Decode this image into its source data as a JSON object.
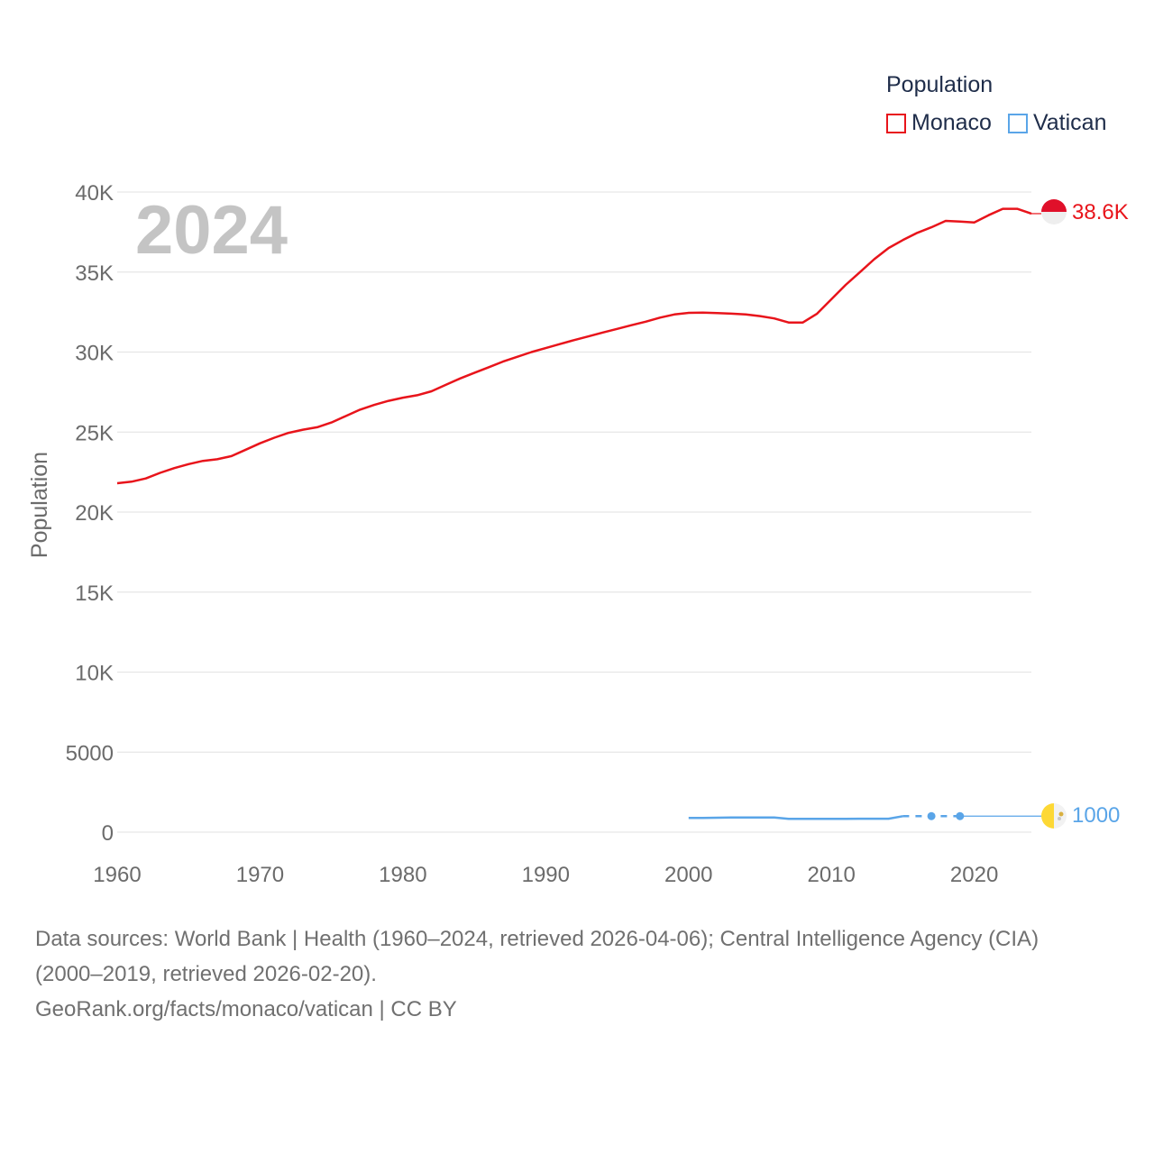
{
  "legend": {
    "title": "Population",
    "items": [
      "Monaco",
      "Vatican"
    ]
  },
  "footer": {
    "line1": "Data sources: World Bank | Health (1960–2024, retrieved 2026-04-06); Central Intelligence Agency (CIA)",
    "line2": "(2000–2019, retrieved 2026-02-20).",
    "line3": "GeoRank.org/facts/monaco/vatican | CC BY"
  },
  "colors": {
    "monaco": "#e8141b",
    "vatican": "#5aa5e8",
    "grid": "#e6e6e6",
    "axis_text": "#6b6b6b",
    "year_label": "#c4c4c4"
  },
  "chart_data": {
    "type": "line",
    "title": "Population",
    "year_label": "2024",
    "xlabel": "",
    "ylabel": "Population",
    "xlim": [
      1960,
      2024
    ],
    "ylim": [
      0,
      40000
    ],
    "x_ticks": [
      "1960",
      "1970",
      "1980",
      "1990",
      "2000",
      "2010",
      "2020"
    ],
    "y_ticks": [
      "0",
      "5000",
      "10K",
      "15K",
      "20K",
      "25K",
      "30K",
      "35K",
      "40K"
    ],
    "series": [
      {
        "name": "Monaco",
        "end_label": "38.6K",
        "end_value": 38600,
        "points": [
          [
            1960,
            21800
          ],
          [
            1961,
            21900
          ],
          [
            1962,
            22100
          ],
          [
            1963,
            22450
          ],
          [
            1964,
            22750
          ],
          [
            1965,
            23000
          ],
          [
            1966,
            23200
          ],
          [
            1967,
            23300
          ],
          [
            1968,
            23500
          ],
          [
            1969,
            23900
          ],
          [
            1970,
            24300
          ],
          [
            1971,
            24650
          ],
          [
            1972,
            24950
          ],
          [
            1973,
            25150
          ],
          [
            1974,
            25300
          ],
          [
            1975,
            25600
          ],
          [
            1976,
            26000
          ],
          [
            1977,
            26400
          ],
          [
            1978,
            26700
          ],
          [
            1979,
            26950
          ],
          [
            1980,
            27150
          ],
          [
            1981,
            27300
          ],
          [
            1982,
            27550
          ],
          [
            1983,
            27950
          ],
          [
            1984,
            28350
          ],
          [
            1985,
            28700
          ],
          [
            1986,
            29050
          ],
          [
            1987,
            29400
          ],
          [
            1988,
            29700
          ],
          [
            1989,
            30000
          ],
          [
            1990,
            30250
          ],
          [
            1991,
            30500
          ],
          [
            1992,
            30750
          ],
          [
            1993,
            30980
          ],
          [
            1994,
            31220
          ],
          [
            1995,
            31450
          ],
          [
            1996,
            31680
          ],
          [
            1997,
            31900
          ],
          [
            1998,
            32150
          ],
          [
            1999,
            32350
          ],
          [
            2000,
            32450
          ],
          [
            2001,
            32460
          ],
          [
            2002,
            32440
          ],
          [
            2003,
            32400
          ],
          [
            2004,
            32350
          ],
          [
            2005,
            32250
          ],
          [
            2006,
            32100
          ],
          [
            2007,
            31850
          ],
          [
            2008,
            31850
          ],
          [
            2009,
            32400
          ],
          [
            2010,
            33300
          ],
          [
            2011,
            34200
          ],
          [
            2012,
            35000
          ],
          [
            2013,
            35800
          ],
          [
            2014,
            36500
          ],
          [
            2015,
            37000
          ],
          [
            2016,
            37450
          ],
          [
            2017,
            37800
          ],
          [
            2018,
            38200
          ],
          [
            2019,
            38150
          ],
          [
            2020,
            38100
          ],
          [
            2021,
            38550
          ],
          [
            2022,
            38950
          ],
          [
            2023,
            38950
          ],
          [
            2024,
            38650
          ]
        ]
      },
      {
        "name": "Vatican",
        "end_label": "1000",
        "end_value": 1000,
        "points": [
          [
            2000,
            890
          ],
          [
            2001,
            890
          ],
          [
            2002,
            900
          ],
          [
            2003,
            910
          ],
          [
            2004,
            920
          ],
          [
            2005,
            920
          ],
          [
            2006,
            920
          ],
          [
            2007,
            830
          ],
          [
            2008,
            830
          ],
          [
            2009,
            830
          ],
          [
            2010,
            830
          ],
          [
            2011,
            830
          ],
          [
            2012,
            840
          ],
          [
            2013,
            840
          ],
          [
            2014,
            840
          ],
          [
            2015,
            1000
          ],
          [
            2016,
            1000
          ],
          [
            2017,
            1000
          ],
          [
            2018,
            1000
          ],
          [
            2019,
            1000
          ]
        ],
        "markers": [
          [
            2017,
            1000
          ],
          [
            2019,
            1000
          ]
        ]
      }
    ]
  }
}
